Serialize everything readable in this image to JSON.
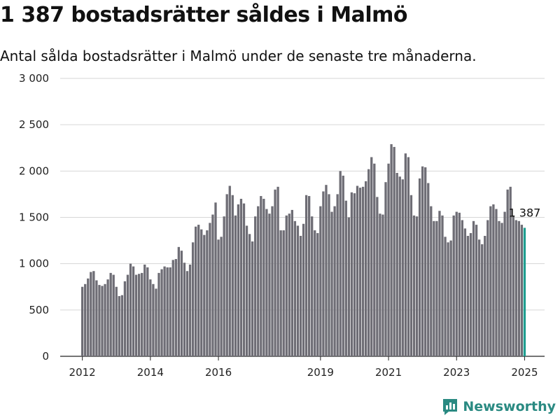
{
  "title": "1 387 bostadsrätter såldes i Malmö",
  "subtitle": "Antal sålda bostadsrätter i Malmö under de senaste tre månaderna.",
  "brand": {
    "name": "Newsworthy",
    "color": "#2a8a82",
    "icon": "newsworthy-logo-icon"
  },
  "chart_data": {
    "type": "bar",
    "title": "1 387 bostadsrätter såldes i Malmö",
    "subtitle": "Antal sålda bostadsrätter i Malmö under de senaste tre månaderna.",
    "xlabel": "",
    "ylabel": "",
    "ylim": [
      0,
      3000
    ],
    "yticks": [
      0,
      500,
      1000,
      1500,
      2000,
      2500,
      3000
    ],
    "ytick_labels": [
      "0",
      "500",
      "1 000",
      "1 500",
      "2 000",
      "2 500",
      "3 000"
    ],
    "xtick_labels": [
      "2012",
      "2014",
      "2016",
      "2019",
      "2021",
      "2023",
      "2025"
    ],
    "grid": true,
    "bar_color": "#6e6d75",
    "highlight_color": "#1f9e90",
    "annotation": "1 387",
    "categories": [
      "2012-01",
      "2012-02",
      "2012-03",
      "2012-04",
      "2012-05",
      "2012-06",
      "2012-07",
      "2012-08",
      "2012-09",
      "2012-10",
      "2012-11",
      "2012-12",
      "2013-01",
      "2013-02",
      "2013-03",
      "2013-04",
      "2013-05",
      "2013-06",
      "2013-07",
      "2013-08",
      "2013-09",
      "2013-10",
      "2013-11",
      "2013-12",
      "2014-01",
      "2014-02",
      "2014-03",
      "2014-04",
      "2014-05",
      "2014-06",
      "2014-07",
      "2014-08",
      "2014-09",
      "2014-10",
      "2014-11",
      "2014-12",
      "2015-01",
      "2015-02",
      "2015-03",
      "2015-04",
      "2015-05",
      "2015-06",
      "2015-07",
      "2015-08",
      "2015-09",
      "2015-10",
      "2015-11",
      "2015-12",
      "2016-01",
      "2016-02",
      "2016-03",
      "2016-04",
      "2016-05",
      "2016-06",
      "2016-07",
      "2016-08",
      "2016-09",
      "2016-10",
      "2016-11",
      "2016-12",
      "2017-01",
      "2017-02",
      "2017-03",
      "2017-04",
      "2017-05",
      "2017-06",
      "2017-07",
      "2017-08",
      "2017-09",
      "2017-10",
      "2017-11",
      "2017-12",
      "2018-01",
      "2018-02",
      "2018-03",
      "2018-04",
      "2018-05",
      "2018-06",
      "2018-07",
      "2018-08",
      "2018-09",
      "2018-10",
      "2018-11",
      "2018-12",
      "2019-01",
      "2019-02",
      "2019-03",
      "2019-04",
      "2019-05",
      "2019-06",
      "2019-07",
      "2019-08",
      "2019-09",
      "2019-10",
      "2019-11",
      "2019-12",
      "2020-01",
      "2020-02",
      "2020-03",
      "2020-04",
      "2020-05",
      "2020-06",
      "2020-07",
      "2020-08",
      "2020-09",
      "2020-10",
      "2020-11",
      "2020-12",
      "2021-01",
      "2021-02",
      "2021-03",
      "2021-04",
      "2021-05",
      "2021-06",
      "2021-07",
      "2021-08",
      "2021-09",
      "2021-10",
      "2021-11",
      "2021-12",
      "2022-01",
      "2022-02",
      "2022-03",
      "2022-04",
      "2022-05",
      "2022-06",
      "2022-07",
      "2022-08",
      "2022-09",
      "2022-10",
      "2022-11",
      "2022-12",
      "2023-01",
      "2023-02",
      "2023-03",
      "2023-04",
      "2023-05",
      "2023-06",
      "2023-07",
      "2023-08",
      "2023-09",
      "2023-10",
      "2023-11",
      "2023-12",
      "2024-01",
      "2024-02",
      "2024-03",
      "2024-04",
      "2024-05",
      "2024-06",
      "2024-07",
      "2024-08",
      "2024-09",
      "2024-10",
      "2024-11",
      "2024-12",
      "2025-01"
    ],
    "values": [
      750,
      780,
      840,
      910,
      920,
      820,
      770,
      760,
      780,
      830,
      900,
      880,
      750,
      650,
      660,
      810,
      880,
      1000,
      970,
      880,
      890,
      900,
      990,
      960,
      830,
      780,
      730,
      900,
      940,
      970,
      960,
      960,
      1040,
      1050,
      1180,
      1140,
      1010,
      920,
      990,
      1230,
      1400,
      1420,
      1370,
      1310,
      1360,
      1440,
      1530,
      1660,
      1260,
      1290,
      1510,
      1750,
      1840,
      1740,
      1520,
      1640,
      1700,
      1650,
      1410,
      1320,
      1240,
      1510,
      1620,
      1730,
      1700,
      1590,
      1540,
      1620,
      1800,
      1830,
      1360,
      1360,
      1520,
      1540,
      1580,
      1460,
      1410,
      1300,
      1430,
      1740,
      1730,
      1510,
      1360,
      1330,
      1620,
      1780,
      1850,
      1750,
      1560,
      1620,
      1750,
      2000,
      1950,
      1680,
      1500,
      1770,
      1760,
      1840,
      1820,
      1830,
      1890,
      2020,
      2150,
      2080,
      1720,
      1540,
      1530,
      1880,
      2080,
      2290,
      2260,
      1980,
      1940,
      1910,
      2190,
      2150,
      1740,
      1520,
      1510,
      1920,
      2050,
      2040,
      1870,
      1620,
      1460,
      1460,
      1570,
      1520,
      1290,
      1230,
      1250,
      1520,
      1560,
      1550,
      1470,
      1380,
      1300,
      1330,
      1460,
      1420,
      1260,
      1210,
      1300,
      1470,
      1620,
      1640,
      1590,
      1460,
      1440,
      1560,
      1800,
      1830,
      1520,
      1470,
      1460,
      1420,
      1387
    ]
  }
}
